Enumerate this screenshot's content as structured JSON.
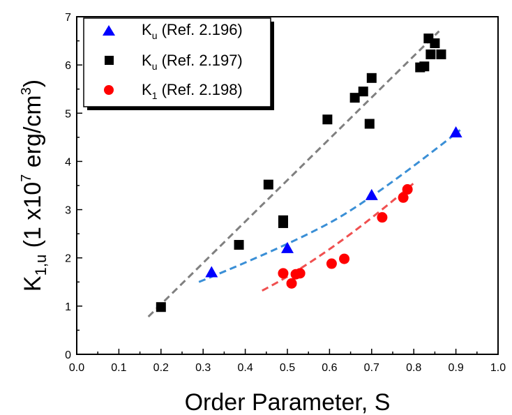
{
  "chart_data": {
    "type": "scatter",
    "xlabel": "Order Parameter, S",
    "ylabel": {
      "main": "K",
      "subscript": "1,u",
      "rest_before_sup": " (1 x10",
      "superscript1": "7",
      "rest_mid": " erg/cm",
      "superscript2": "3",
      "rest_after": ")"
    },
    "xlim": [
      0.0,
      1.0
    ],
    "ylim": [
      0,
      7
    ],
    "x_ticks": [
      "0.0",
      "0.1",
      "0.2",
      "0.3",
      "0.4",
      "0.5",
      "0.6",
      "0.7",
      "0.8",
      "0.9",
      "1.0"
    ],
    "y_ticks": [
      "0",
      "1",
      "2",
      "3",
      "4",
      "5",
      "6",
      "7"
    ],
    "grid": false,
    "legend_position": "top-left",
    "series": [
      {
        "label_main": "K",
        "label_sub": "u",
        "label_rest": " (Ref. 2.196)",
        "marker": "triangle",
        "color": "#0000ff",
        "points": [
          [
            0.32,
            1.7
          ],
          [
            0.5,
            2.2
          ],
          [
            0.7,
            3.3
          ],
          [
            0.9,
            4.6
          ]
        ],
        "fit": {
          "color": "#3a8fd6",
          "x_range": [
            0.29,
            0.91
          ],
          "points": [
            [
              0.29,
              1.5
            ],
            [
              0.5,
              2.25
            ],
            [
              0.7,
              3.2
            ],
            [
              0.91,
              4.65
            ]
          ]
        }
      },
      {
        "label_main": "K",
        "label_sub": "u",
        "label_rest": " (Ref. 2.197)",
        "marker": "square",
        "color": "#000000",
        "points": [
          [
            0.2,
            0.98
          ],
          [
            0.385,
            2.27
          ],
          [
            0.455,
            3.52
          ],
          [
            0.49,
            2.72
          ],
          [
            0.49,
            2.78
          ],
          [
            0.595,
            4.87
          ],
          [
            0.66,
            5.32
          ],
          [
            0.68,
            5.45
          ],
          [
            0.695,
            4.78
          ],
          [
            0.7,
            5.73
          ],
          [
            0.815,
            5.95
          ],
          [
            0.825,
            5.97
          ],
          [
            0.835,
            6.55
          ],
          [
            0.84,
            6.22
          ],
          [
            0.85,
            6.45
          ],
          [
            0.865,
            6.22
          ]
        ],
        "fit": {
          "color": "#808080",
          "x_range": [
            0.17,
            0.86
          ],
          "points": [
            [
              0.17,
              0.78
            ],
            [
              0.86,
              6.7
            ]
          ]
        }
      },
      {
        "label_main": "K",
        "label_sub": "1",
        "label_rest": " (Ref. 2.198)",
        "marker": "circle",
        "color": "#ff0000",
        "points": [
          [
            0.49,
            1.68
          ],
          [
            0.51,
            1.47
          ],
          [
            0.52,
            1.66
          ],
          [
            0.53,
            1.68
          ],
          [
            0.605,
            1.88
          ],
          [
            0.635,
            1.98
          ],
          [
            0.725,
            2.84
          ],
          [
            0.775,
            3.25
          ],
          [
            0.785,
            3.42
          ]
        ],
        "fit": {
          "color": "#f05050",
          "x_range": [
            0.44,
            0.8
          ],
          "points": [
            [
              0.44,
              1.32
            ],
            [
              0.6,
              2.05
            ],
            [
              0.8,
              3.55
            ]
          ]
        }
      }
    ]
  }
}
